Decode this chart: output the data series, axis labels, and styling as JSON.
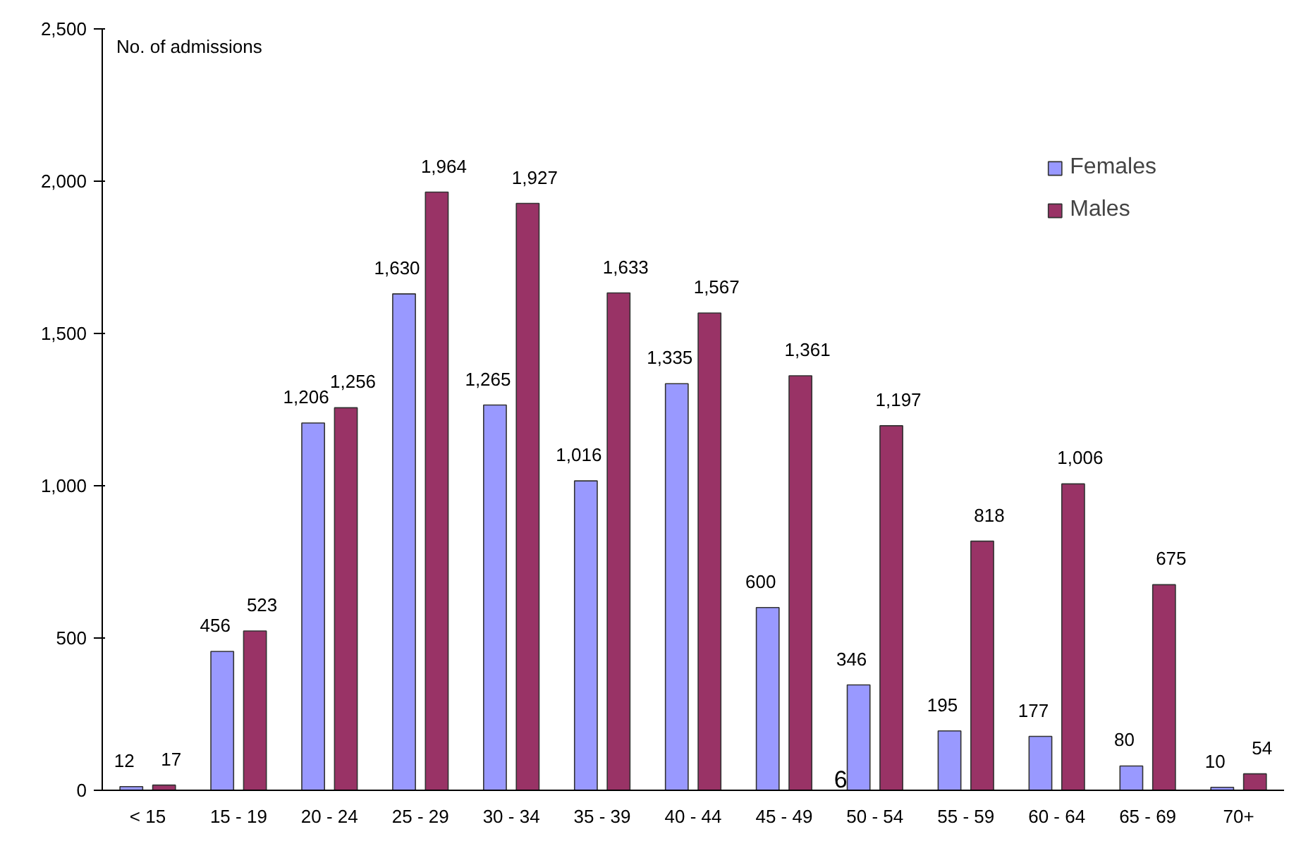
{
  "chart_data": {
    "type": "bar",
    "ylabel": "No. of admissions",
    "categories": [
      "< 15",
      "15 - 19",
      "20 - 24",
      "25 - 29",
      "30 - 34",
      "35 - 39",
      "40 - 44",
      "45 - 49",
      "50 - 54",
      "55 - 59",
      "60 - 64",
      "65 - 69",
      "70+"
    ],
    "series": [
      {
        "name": "Females",
        "color": "#9999ff",
        "values": [
          12,
          456,
          1206,
          1630,
          1265,
          1016,
          1335,
          600,
          346,
          195,
          177,
          80,
          10
        ]
      },
      {
        "name": "Males",
        "color": "#993366",
        "values": [
          17,
          523,
          1256,
          1964,
          1927,
          1633,
          1567,
          1361,
          1197,
          818,
          1006,
          675,
          54
        ]
      }
    ],
    "ylim": [
      0,
      2500
    ],
    "yticks": [
      {
        "value": 0,
        "label": "0"
      },
      {
        "value": 500,
        "label": "500"
      },
      {
        "value": 1000,
        "label": "1,000"
      },
      {
        "value": 1500,
        "label": "1,500"
      },
      {
        "value": 2000,
        "label": "2,000"
      },
      {
        "value": 2500,
        "label": "2,500"
      }
    ],
    "value_labels": [
      [
        "12",
        "456",
        "1,206",
        "1,630",
        "1,265",
        "1,016",
        "1,335",
        "600",
        "346",
        "195",
        "177",
        "80",
        "10"
      ],
      [
        "17",
        "523",
        "1,256",
        "1,964",
        "1,927",
        "1,633",
        "1,567",
        "1,361",
        "1,197",
        "818",
        "1,006",
        "675",
        "54"
      ]
    ],
    "annotations": [
      {
        "text": "6",
        "x": "50 - 54",
        "y": 0
      }
    ],
    "legend": "top right",
    "grid": false
  }
}
